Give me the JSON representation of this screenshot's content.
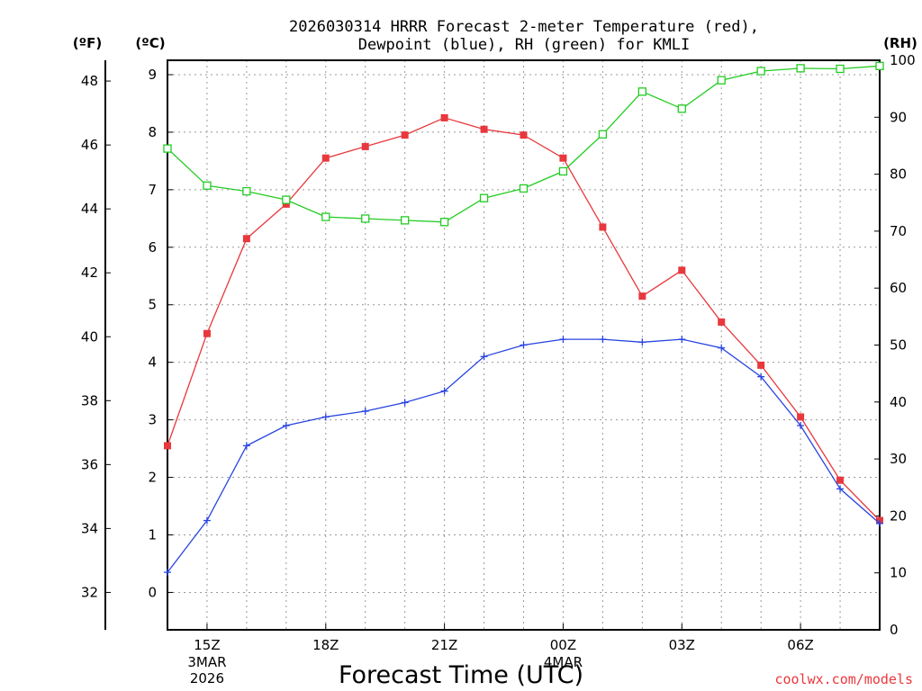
{
  "chart_data": {
    "type": "line",
    "title_line1": "2026030314 HRRR Forecast 2-meter Temperature (red),",
    "title_line2": "Dewpoint (blue), RH (green) for KMLI",
    "xlabel": "Forecast Time (UTC)",
    "credit": "coolwx.com/models",
    "unit_f": "(ºF)",
    "unit_c": "(ºC)",
    "unit_rh": "(RH)",
    "hours": [
      14,
      15,
      16,
      17,
      18,
      19,
      20,
      21,
      22,
      23,
      24,
      25,
      26,
      27,
      28,
      29,
      30,
      31,
      32
    ],
    "xlim": [
      14,
      32
    ],
    "ylim_c": [
      -0.65,
      9.25
    ],
    "ylim_rh": [
      0,
      100
    ],
    "x_ticks": [
      {
        "h": 15,
        "label": "15Z",
        "sub": [
          "3MAR",
          "2026"
        ]
      },
      {
        "h": 18,
        "label": "18Z",
        "sub": []
      },
      {
        "h": 21,
        "label": "21Z",
        "sub": []
      },
      {
        "h": 24,
        "label": "00Z",
        "sub": [
          "4MAR"
        ]
      },
      {
        "h": 27,
        "label": "03Z",
        "sub": []
      },
      {
        "h": 30,
        "label": "06Z",
        "sub": []
      }
    ],
    "c_ticks": [
      "0",
      "1",
      "2",
      "3",
      "4",
      "5",
      "6",
      "7",
      "8",
      "9"
    ],
    "f_ticks": [
      "32",
      "34",
      "36",
      "38",
      "40",
      "42",
      "44",
      "46",
      "48"
    ],
    "rh_ticks": [
      "0",
      "10",
      "20",
      "30",
      "40",
      "50",
      "60",
      "70",
      "80",
      "90",
      "100"
    ],
    "series": [
      {
        "name": "2-meter Temperature",
        "unit": "C",
        "axis": "c",
        "color": "#e8383d",
        "marker": "filled-square",
        "values": [
          2.55,
          4.5,
          6.15,
          6.75,
          7.55,
          7.75,
          7.95,
          8.25,
          8.05,
          7.95,
          7.55,
          6.35,
          5.15,
          5.6,
          4.7,
          3.95,
          3.05,
          1.95,
          1.25
        ]
      },
      {
        "name": "Dewpoint",
        "unit": "C",
        "axis": "c",
        "color": "#2844e0",
        "marker": "plus",
        "values": [
          0.35,
          1.25,
          2.55,
          2.9,
          3.05,
          3.15,
          3.3,
          3.5,
          4.1,
          4.3,
          4.4,
          4.4,
          4.35,
          4.4,
          4.25,
          3.75,
          2.9,
          1.8,
          1.2
        ]
      },
      {
        "name": "Relative Humidity",
        "unit": "%",
        "axis": "rh",
        "color": "#22cc22",
        "marker": "open-square",
        "values": [
          84.5,
          78.0,
          77.0,
          75.5,
          72.5,
          72.2,
          71.9,
          71.6,
          75.8,
          77.5,
          80.5,
          87.0,
          94.5,
          91.5,
          96.5,
          98.1,
          98.6,
          98.5,
          99.0
        ]
      }
    ]
  }
}
